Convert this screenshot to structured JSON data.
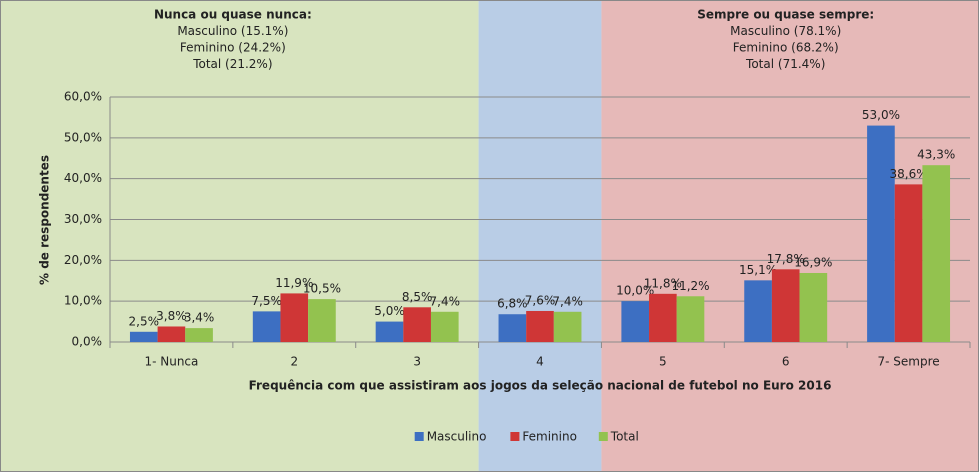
{
  "chart_data": {
    "type": "bar",
    "x_label": "Frequência com que assistiram aos jogos da seleção nacional de futebol no Euro 2016",
    "y_label": "% de respondentes",
    "categories": [
      "1- Nunca",
      "2",
      "3",
      "4",
      "5",
      "6",
      "7- Sempre"
    ],
    "series": [
      {
        "name": "Masculino",
        "color": "#3d6fc2",
        "values": [
          2.5,
          7.5,
          5.0,
          6.8,
          10.0,
          15.1,
          53.0
        ],
        "value_labels": [
          "2,5%",
          "7,5%",
          "5,0%",
          "6,8%",
          "10,0%",
          "15,1%",
          "53,0%"
        ]
      },
      {
        "name": "Feminino",
        "color": "#cf3636",
        "values": [
          3.8,
          11.9,
          8.5,
          7.6,
          11.8,
          17.8,
          38.6
        ],
        "value_labels": [
          "3,8%",
          "11,9%",
          "8,5%",
          "7,6%",
          "11,8%",
          "17,8%",
          "38,6%"
        ]
      },
      {
        "name": "Total",
        "color": "#93c24f",
        "values": [
          3.4,
          10.5,
          7.4,
          7.4,
          11.2,
          16.9,
          43.3
        ],
        "value_labels": [
          "3,4%",
          "10,5%",
          "7,4%",
          "7,4%",
          "11,2%",
          "16,9%",
          "43,3%"
        ]
      }
    ],
    "ylim": [
      0,
      60
    ],
    "yticks": [
      {
        "value": 0,
        "label": "0,0%"
      },
      {
        "value": 10,
        "label": "10,0%"
      },
      {
        "value": 20,
        "label": "20,0%"
      },
      {
        "value": 30,
        "label": "30,0%"
      },
      {
        "value": 40,
        "label": "40,0%"
      },
      {
        "value": 50,
        "label": "50,0%"
      },
      {
        "value": 60,
        "label": "60,0%"
      }
    ],
    "grid": true,
    "legend": "bottom",
    "background_bands": [
      {
        "categories": [
          0,
          2
        ],
        "color": "#d8e4bf"
      },
      {
        "categories": [
          3,
          3
        ],
        "color": "#b9cde6"
      },
      {
        "categories": [
          4,
          6
        ],
        "color": "#e6b9b8"
      }
    ],
    "annotations": [
      {
        "categories": [
          0,
          1
        ],
        "lines": [
          "Nunca ou quase nunca:",
          "Masculino (15.1%)",
          "Feminino (24.2%)",
          "Total (21.2%)"
        ]
      },
      {
        "categories": [
          5,
          5
        ],
        "lines": [
          "Sempre ou quase sempre:",
          "Masculino (78.1%)",
          "Feminino (68.2%)",
          "Total (71.4%)"
        ]
      }
    ]
  }
}
